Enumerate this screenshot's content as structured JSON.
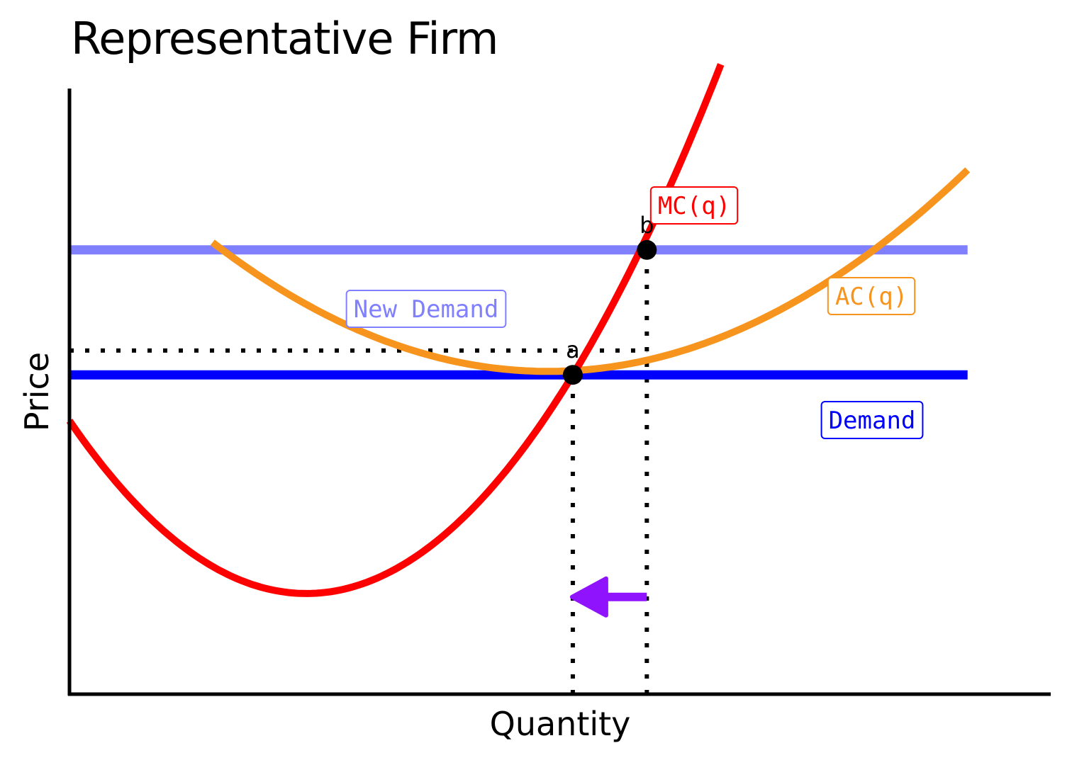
{
  "title": "Representative Firm",
  "chart_data": {
    "type": "line",
    "xlabel": "Quantity",
    "ylabel": "Price",
    "xlim": [
      0,
      10
    ],
    "ylim": [
      0,
      10
    ],
    "grid": false,
    "series": [
      {
        "name": "MC(q)",
        "color": "#ff0000",
        "curve": "mc",
        "x_range": [
          0,
          6.6
        ]
      },
      {
        "name": "AC(q)",
        "color": "#f7941d",
        "curve": "ac",
        "x_range": [
          1.45,
          9.1
        ]
      },
      {
        "name": "Demand",
        "color": "#0000ff",
        "level": 4.6,
        "x_range": [
          0,
          9.1
        ]
      },
      {
        "name": "New Demand",
        "color": "#8080ff",
        "level": 6.4,
        "x_range": [
          0,
          9.1
        ]
      }
    ],
    "points": [
      {
        "label": "a",
        "x": 5.1,
        "y": 4.6
      },
      {
        "label": "b",
        "x": 5.85,
        "y": 6.4
      }
    ],
    "reference_lines": [
      {
        "orientation": "horizontal",
        "y": 4.95,
        "x_from": 0,
        "x_to": 5.85
      },
      {
        "orientation": "vertical",
        "x": 5.1,
        "y_from": 0,
        "y_to": 4.6
      },
      {
        "orientation": "vertical",
        "x": 5.85,
        "y_from": 0,
        "y_to": 6.4
      }
    ],
    "arrow": {
      "color": "#9013fe",
      "x_from": 5.85,
      "x_to": 5.15,
      "y": 1.4,
      "direction": "left"
    }
  }
}
